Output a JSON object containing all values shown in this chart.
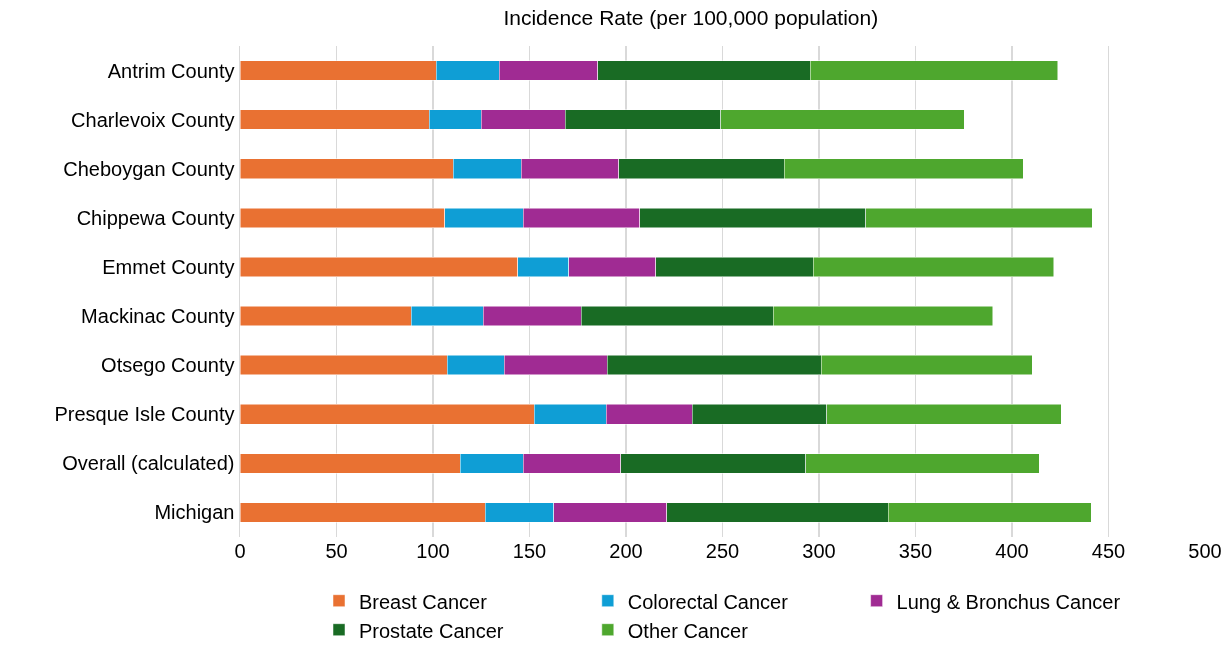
{
  "chart_data": {
    "type": "bar",
    "orientation": "horizontal",
    "stacked": true,
    "title": "Incidence Rate (per 100,000 population)",
    "categories": [
      "Antrim County",
      "Charlevoix County",
      "Cheboygan County",
      "Chippewa County",
      "Emmet County",
      "Mackinac County",
      "Otsego County",
      "Presque Isle County",
      "Overall (calculated)",
      "Michigan"
    ],
    "series": [
      {
        "name": "Breast Cancer",
        "color": "#e97132",
        "values": [
          101.6,
          98.1,
          110.4,
          106.0,
          143.9,
          88.8,
          107.3,
          152.5,
          114.0,
          127.1
        ]
      },
      {
        "name": "Colorectal Cancer",
        "color": "#0f9ed5",
        "values": [
          32.8,
          26.9,
          35.4,
          40.8,
          26.4,
          37.3,
          29.7,
          37.3,
          32.8,
          35.4
        ]
      },
      {
        "name": "Lung & Bronchus Cancer",
        "color": "#a02b93",
        "values": [
          50.9,
          43.6,
          50.4,
          60.3,
          45.2,
          50.8,
          53.3,
          44.6,
          50.4,
          58.7
        ]
      },
      {
        "name": "Prostate Cancer",
        "color": "#196b24",
        "values": [
          110.2,
          80.4,
          85.9,
          117.2,
          81.5,
          99.5,
          110.9,
          69.6,
          96.0,
          114.6
        ]
      },
      {
        "name": "Other Cancer",
        "color": "#4ea72e",
        "values": [
          128.3,
          126.2,
          123.8,
          117.2,
          124.5,
          113.5,
          109.4,
          121.5,
          121.0,
          105.3
        ]
      }
    ],
    "xlim": [
      0,
      500
    ],
    "xticks": [
      0,
      50,
      100,
      150,
      200,
      250,
      300,
      350,
      400,
      450,
      500
    ],
    "grid": "x",
    "legend": "bottom"
  }
}
